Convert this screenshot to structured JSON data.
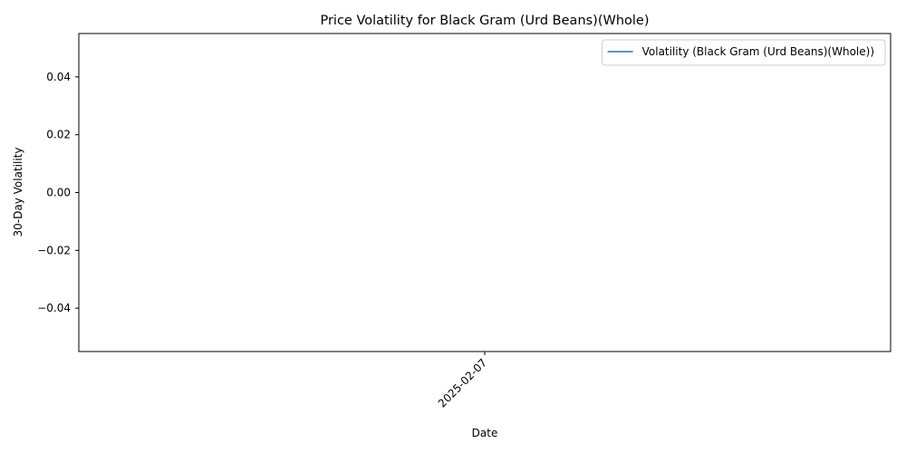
{
  "chart_data": {
    "type": "line",
    "title": "Price Volatility for Black Gram (Urd Beans)(Whole)",
    "xlabel": "Date",
    "ylabel": "30-Day Volatility",
    "x_ticks": [
      "2025-02-07"
    ],
    "y_ticks": [
      "0.04",
      "0.02",
      "0.00",
      "−0.02",
      "−0.04"
    ],
    "y_tick_values": [
      0.04,
      0.02,
      0.0,
      -0.02,
      -0.04
    ],
    "ylim": [
      -0.055,
      0.055
    ],
    "grid": false,
    "legend_position": "top-right",
    "series": [
      {
        "name": "Volatility (Black Gram (Urd Beans)(Whole))",
        "color": "#1f77b4",
        "x": [],
        "values": []
      }
    ]
  }
}
